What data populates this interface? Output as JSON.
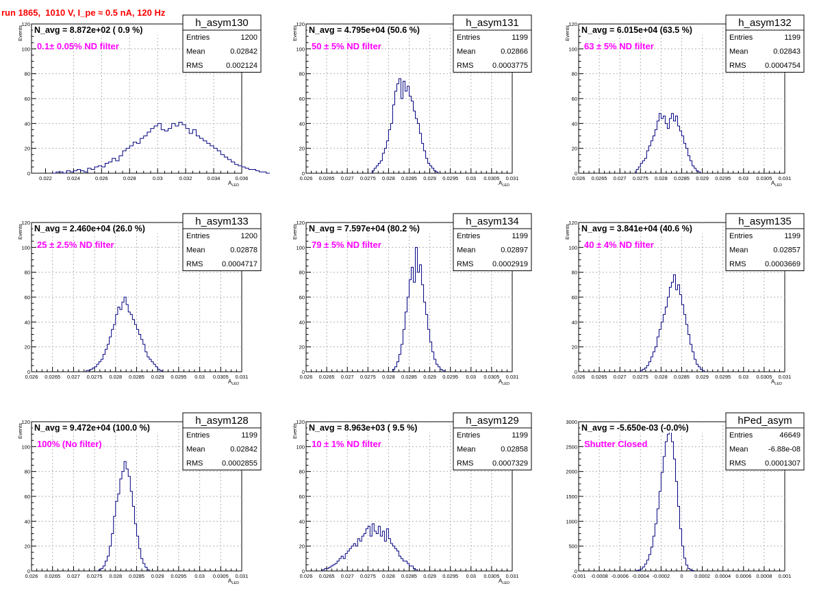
{
  "header": {
    "run_title": "run 1865,  1010 V, I_pe ≈ 0.5 nA, 120 Hz"
  },
  "colors": {
    "histogram": "#000080",
    "annotation": "#ff00ff",
    "title": "#ff0000"
  },
  "chart_data": [
    {
      "type": "histogram",
      "name": "h_asym130",
      "navg_text": "N_avg = 8.872e+02 ( 0.9 %)",
      "filter_text": "0.1± 0.05% ND filter",
      "stats": [
        [
          "Entries",
          "1200"
        ],
        [
          "Mean",
          "0.02842"
        ],
        [
          "RMS",
          "0.002124"
        ]
      ],
      "ylabel": "Events",
      "xlabel_main": "A",
      "xlabel_sub": "LED",
      "xlim": [
        0.021,
        0.036
      ],
      "ylim": [
        0,
        120
      ],
      "xticks": [
        0.022,
        0.024,
        0.026,
        0.028,
        0.03,
        0.032,
        0.034,
        0.036
      ],
      "xtick_labels": [
        "0.022",
        "0.024",
        "0.026",
        "0.028",
        "0.03",
        "0.032",
        "0.034",
        "0.036"
      ],
      "yticks": [
        0,
        20,
        40,
        60,
        80,
        100,
        120
      ],
      "ytick_labels": [
        "0",
        "20",
        "40",
        "60",
        "80",
        "100",
        "120"
      ],
      "bin_start": 0.0225,
      "bin_width": 0.00025,
      "counts": [
        0,
        1,
        1,
        0,
        2,
        1,
        2,
        3,
        2,
        1,
        4,
        3,
        5,
        6,
        5,
        8,
        9,
        12,
        10,
        14,
        18,
        20,
        22,
        25,
        24,
        28,
        30,
        33,
        36,
        38,
        40,
        35,
        34,
        36,
        40,
        38,
        41,
        39,
        36,
        32,
        35,
        30,
        28,
        26,
        24,
        22,
        20,
        18,
        15,
        13,
        11,
        9,
        7,
        6,
        5,
        4,
        3,
        3,
        2,
        1,
        1,
        0
      ]
    },
    {
      "type": "histogram",
      "name": "h_asym131",
      "navg_text": "N_avg = 4.795e+04 (50.6 %)",
      "filter_text": "50 ± 5% ND filter",
      "stats": [
        [
          "Entries",
          "1199"
        ],
        [
          "Mean",
          "0.02866"
        ],
        [
          "RMS",
          "0.0003775"
        ]
      ],
      "ylabel": "Events",
      "xlabel_main": "A",
      "xlabel_sub": "LED",
      "xlim": [
        0.026,
        0.031
      ],
      "ylim": [
        0,
        120
      ],
      "xticks": [
        0.026,
        0.0265,
        0.027,
        0.0275,
        0.028,
        0.0285,
        0.029,
        0.0295,
        0.03,
        0.0305,
        0.031
      ],
      "xtick_labels": [
        "0.026",
        "0.0265",
        "0.027",
        "0.0275",
        "0.028",
        "0.0285",
        "0.029",
        "0.0295",
        "0.03",
        "0.0305",
        "0.031"
      ],
      "yticks": [
        0,
        20,
        40,
        60,
        80,
        100,
        120
      ],
      "ytick_labels": [
        "0",
        "20",
        "40",
        "60",
        "80",
        "100",
        "120"
      ],
      "bin_start": 0.0276,
      "bin_width": 5e-05,
      "counts": [
        2,
        4,
        6,
        8,
        10,
        16,
        20,
        26,
        35,
        40,
        55,
        66,
        72,
        76,
        60,
        74,
        66,
        70,
        62,
        58,
        50,
        44,
        40,
        32,
        24,
        18,
        12,
        8,
        6,
        4,
        2,
        1
      ]
    },
    {
      "type": "histogram",
      "name": "h_asym132",
      "navg_text": "N_avg = 6.015e+04 (63.5 %)",
      "filter_text": "63 ± 5% ND filter",
      "stats": [
        [
          "Entries",
          "1199"
        ],
        [
          "Mean",
          "0.02843"
        ],
        [
          "RMS",
          "0.0004754"
        ]
      ],
      "ylabel": "Events",
      "xlabel_main": "A",
      "xlabel_sub": "LED",
      "xlim": [
        0.026,
        0.031
      ],
      "ylim": [
        0,
        120
      ],
      "xticks": [
        0.026,
        0.0265,
        0.027,
        0.0275,
        0.028,
        0.0285,
        0.029,
        0.0295,
        0.03,
        0.0305,
        0.031
      ],
      "xtick_labels": [
        "0.026",
        "0.0265",
        "0.027",
        "0.0275",
        "0.028",
        "0.0285",
        "0.029",
        "0.0295",
        "0.03",
        "0.0305",
        "0.031"
      ],
      "yticks": [
        0,
        20,
        40,
        60,
        80,
        100,
        120
      ],
      "ytick_labels": [
        "0",
        "20",
        "40",
        "60",
        "80",
        "100",
        "120"
      ],
      "bin_start": 0.0274,
      "bin_width": 5e-05,
      "counts": [
        3,
        5,
        8,
        10,
        12,
        18,
        22,
        26,
        30,
        35,
        42,
        48,
        44,
        46,
        40,
        36,
        44,
        48,
        42,
        46,
        38,
        34,
        30,
        24,
        20,
        14,
        10,
        6,
        4,
        2,
        1
      ]
    },
    {
      "type": "histogram",
      "name": "h_asym133",
      "navg_text": "N_avg = 2.460e+04 (26.0 %)",
      "filter_text": "25 ± 2.5% ND filter",
      "stats": [
        [
          "Entries",
          "1200"
        ],
        [
          "Mean",
          "0.02878"
        ],
        [
          "RMS",
          "0.0004717"
        ]
      ],
      "ylabel": "Events",
      "xlabel_main": "A",
      "xlabel_sub": "LED",
      "xlim": [
        0.026,
        0.031
      ],
      "ylim": [
        0,
        120
      ],
      "xticks": [
        0.026,
        0.0265,
        0.027,
        0.0275,
        0.028,
        0.0285,
        0.029,
        0.0295,
        0.03,
        0.0305,
        0.031
      ],
      "xtick_labels": [
        "0.026",
        "0.0265",
        "0.027",
        "0.0275",
        "0.028",
        "0.0285",
        "0.029",
        "0.0295",
        "0.03",
        "0.0305",
        "0.031"
      ],
      "yticks": [
        0,
        20,
        40,
        60,
        80,
        100,
        120
      ],
      "ytick_labels": [
        "0",
        "20",
        "40",
        "60",
        "80",
        "100",
        "120"
      ],
      "bin_start": 0.0273,
      "bin_width": 5e-05,
      "counts": [
        1,
        1,
        2,
        3,
        4,
        6,
        8,
        10,
        14,
        18,
        22,
        28,
        34,
        38,
        46,
        52,
        50,
        56,
        60,
        54,
        48,
        46,
        42,
        38,
        34,
        30,
        26,
        22,
        16,
        12,
        10,
        8,
        6,
        4,
        2,
        1
      ]
    },
    {
      "type": "histogram",
      "name": "h_asym134",
      "navg_text": "N_avg = 7.597e+04 (80.2 %)",
      "filter_text": "79 ± 5% ND filter",
      "stats": [
        [
          "Entries",
          "1199"
        ],
        [
          "Mean",
          "0.02897"
        ],
        [
          "RMS",
          "0.0002919"
        ]
      ],
      "ylabel": "Events",
      "xlabel_main": "A",
      "xlabel_sub": "LED",
      "xlim": [
        0.026,
        0.031
      ],
      "ylim": [
        0,
        120
      ],
      "xticks": [
        0.026,
        0.0265,
        0.027,
        0.0275,
        0.028,
        0.0285,
        0.029,
        0.0295,
        0.03,
        0.0305,
        0.031
      ],
      "xtick_labels": [
        "0.026",
        "0.0265",
        "0.027",
        "0.0275",
        "0.028",
        "0.0285",
        "0.029",
        "0.0295",
        "0.03",
        "0.0305",
        "0.031"
      ],
      "yticks": [
        0,
        20,
        40,
        60,
        80,
        100,
        120
      ],
      "ytick_labels": [
        "0",
        "20",
        "40",
        "60",
        "80",
        "100",
        "120"
      ],
      "bin_start": 0.0281,
      "bin_width": 5e-05,
      "counts": [
        2,
        4,
        8,
        14,
        22,
        34,
        48,
        60,
        74,
        84,
        72,
        100,
        80,
        86,
        70,
        56,
        46,
        34,
        24,
        16,
        10,
        6,
        4,
        2,
        1
      ]
    },
    {
      "type": "histogram",
      "name": "h_asym135",
      "navg_text": "N_avg = 3.841e+04 (40.6 %)",
      "filter_text": "40 ± 4% ND filter",
      "stats": [
        [
          "Entries",
          "1199"
        ],
        [
          "Mean",
          "0.02857"
        ],
        [
          "RMS",
          "0.0003669"
        ]
      ],
      "ylabel": "Events",
      "xlabel_main": "A",
      "xlabel_sub": "LED",
      "xlim": [
        0.026,
        0.031
      ],
      "ylim": [
        0,
        120
      ],
      "xticks": [
        0.026,
        0.0265,
        0.027,
        0.0275,
        0.028,
        0.0285,
        0.029,
        0.0295,
        0.03,
        0.0305,
        0.031
      ],
      "xtick_labels": [
        "0.026",
        "0.0265",
        "0.027",
        "0.0275",
        "0.028",
        "0.0285",
        "0.029",
        "0.0295",
        "0.03",
        "0.0305",
        "0.031"
      ],
      "yticks": [
        0,
        20,
        40,
        60,
        80,
        100,
        120
      ],
      "ytick_labels": [
        "0",
        "20",
        "40",
        "60",
        "80",
        "100",
        "120"
      ],
      "bin_start": 0.0275,
      "bin_width": 5e-05,
      "counts": [
        1,
        2,
        3,
        5,
        8,
        12,
        16,
        20,
        28,
        34,
        40,
        46,
        52,
        60,
        68,
        72,
        78,
        66,
        70,
        62,
        54,
        46,
        38,
        30,
        22,
        16,
        10,
        6,
        4,
        2,
        1
      ]
    },
    {
      "type": "histogram",
      "name": "h_asym128",
      "navg_text": "N_avg = 9.472e+04 (100.0 %)",
      "filter_text": "100% (No filter)",
      "stats": [
        [
          "Entries",
          "1199"
        ],
        [
          "Mean",
          "0.02842"
        ],
        [
          "RMS",
          "0.0002855"
        ]
      ],
      "ylabel": "Events",
      "xlabel_main": "A",
      "xlabel_sub": "LED",
      "xlim": [
        0.026,
        0.031
      ],
      "ylim": [
        0,
        120
      ],
      "xticks": [
        0.026,
        0.0265,
        0.027,
        0.0275,
        0.028,
        0.0285,
        0.029,
        0.0295,
        0.03,
        0.0305,
        0.031
      ],
      "xtick_labels": [
        "0.026",
        "0.0265",
        "0.027",
        "0.0275",
        "0.028",
        "0.0285",
        "0.029",
        "0.0295",
        "0.03",
        "0.0305",
        "0.031"
      ],
      "yticks": [
        0,
        20,
        40,
        60,
        80,
        100,
        120
      ],
      "ytick_labels": [
        "0",
        "20",
        "40",
        "60",
        "80",
        "100",
        "120"
      ],
      "bin_start": 0.0276,
      "bin_width": 5e-05,
      "counts": [
        1,
        2,
        4,
        8,
        12,
        20,
        30,
        44,
        56,
        62,
        74,
        80,
        88,
        82,
        76,
        64,
        52,
        38,
        28,
        18,
        10,
        6,
        3,
        1
      ]
    },
    {
      "type": "histogram",
      "name": "h_asym129",
      "navg_text": "N_avg = 8.963e+03 ( 9.5 %)",
      "filter_text": "10 ± 1% ND filter",
      "stats": [
        [
          "Entries",
          "1199"
        ],
        [
          "Mean",
          "0.02858"
        ],
        [
          "RMS",
          "0.0007329"
        ]
      ],
      "ylabel": "Events",
      "xlabel_main": "A",
      "xlabel_sub": "LED",
      "xlim": [
        0.026,
        0.031
      ],
      "ylim": [
        0,
        120
      ],
      "xticks": [
        0.026,
        0.0265,
        0.027,
        0.0275,
        0.028,
        0.0285,
        0.029,
        0.0295,
        0.03,
        0.0305,
        0.031
      ],
      "xtick_labels": [
        "0.026",
        "0.0265",
        "0.027",
        "0.0275",
        "0.028",
        "0.0285",
        "0.029",
        "0.0295",
        "0.03",
        "0.0305",
        "0.031"
      ],
      "yticks": [
        0,
        20,
        40,
        60,
        80,
        100,
        120
      ],
      "ytick_labels": [
        "0",
        "20",
        "40",
        "60",
        "80",
        "100",
        "120"
      ],
      "bin_start": 0.0264,
      "bin_width": 5e-05,
      "counts": [
        1,
        2,
        2,
        3,
        4,
        5,
        6,
        8,
        10,
        12,
        10,
        14,
        16,
        18,
        20,
        22,
        20,
        26,
        24,
        28,
        30,
        34,
        36,
        28,
        38,
        32,
        30,
        36,
        28,
        32,
        24,
        34,
        26,
        22,
        20,
        18,
        16,
        12,
        10,
        8,
        8,
        6,
        4,
        4,
        2,
        1
      ]
    },
    {
      "type": "histogram",
      "name": "hPed_asym",
      "navg_text": "N_avg = -5.650e-03 (-0.0%)",
      "filter_text": "Shutter Closed",
      "stats": [
        [
          "Entries",
          "46649"
        ],
        [
          "Mean",
          "-6.88e-08"
        ],
        [
          "RMS",
          "0.0001307"
        ]
      ],
      "ylabel": "",
      "xlabel_main": "",
      "xlabel_sub": "",
      "xlim": [
        -0.001,
        0.001
      ],
      "ylim": [
        0,
        3000
      ],
      "xticks": [
        -0.001,
        -0.0008,
        -0.0006,
        -0.0004,
        -0.0002,
        0,
        0.0002,
        0.0004,
        0.0006,
        0.0008,
        0.001
      ],
      "xtick_labels": [
        "-0.001",
        "-0.0008",
        "-0.0006",
        "-0.0004",
        "-0.0002",
        "0",
        "0.0002",
        "0.0004",
        "0.0006",
        "0.0008",
        "0.001"
      ],
      "yticks": [
        0,
        500,
        1000,
        1500,
        2000,
        2500,
        3000
      ],
      "ytick_labels": [
        "0",
        "500",
        "1000",
        "1500",
        "2000",
        "2500",
        "3000"
      ],
      "bin_start": -0.00044,
      "bin_width": 2e-05,
      "counts": [
        10,
        20,
        40,
        80,
        140,
        220,
        330,
        480,
        700,
        950,
        1250,
        1600,
        1980,
        2300,
        2600,
        2750,
        2800,
        2600,
        2250,
        1800,
        1300,
        850,
        500,
        260,
        120,
        50,
        20,
        8
      ]
    }
  ]
}
